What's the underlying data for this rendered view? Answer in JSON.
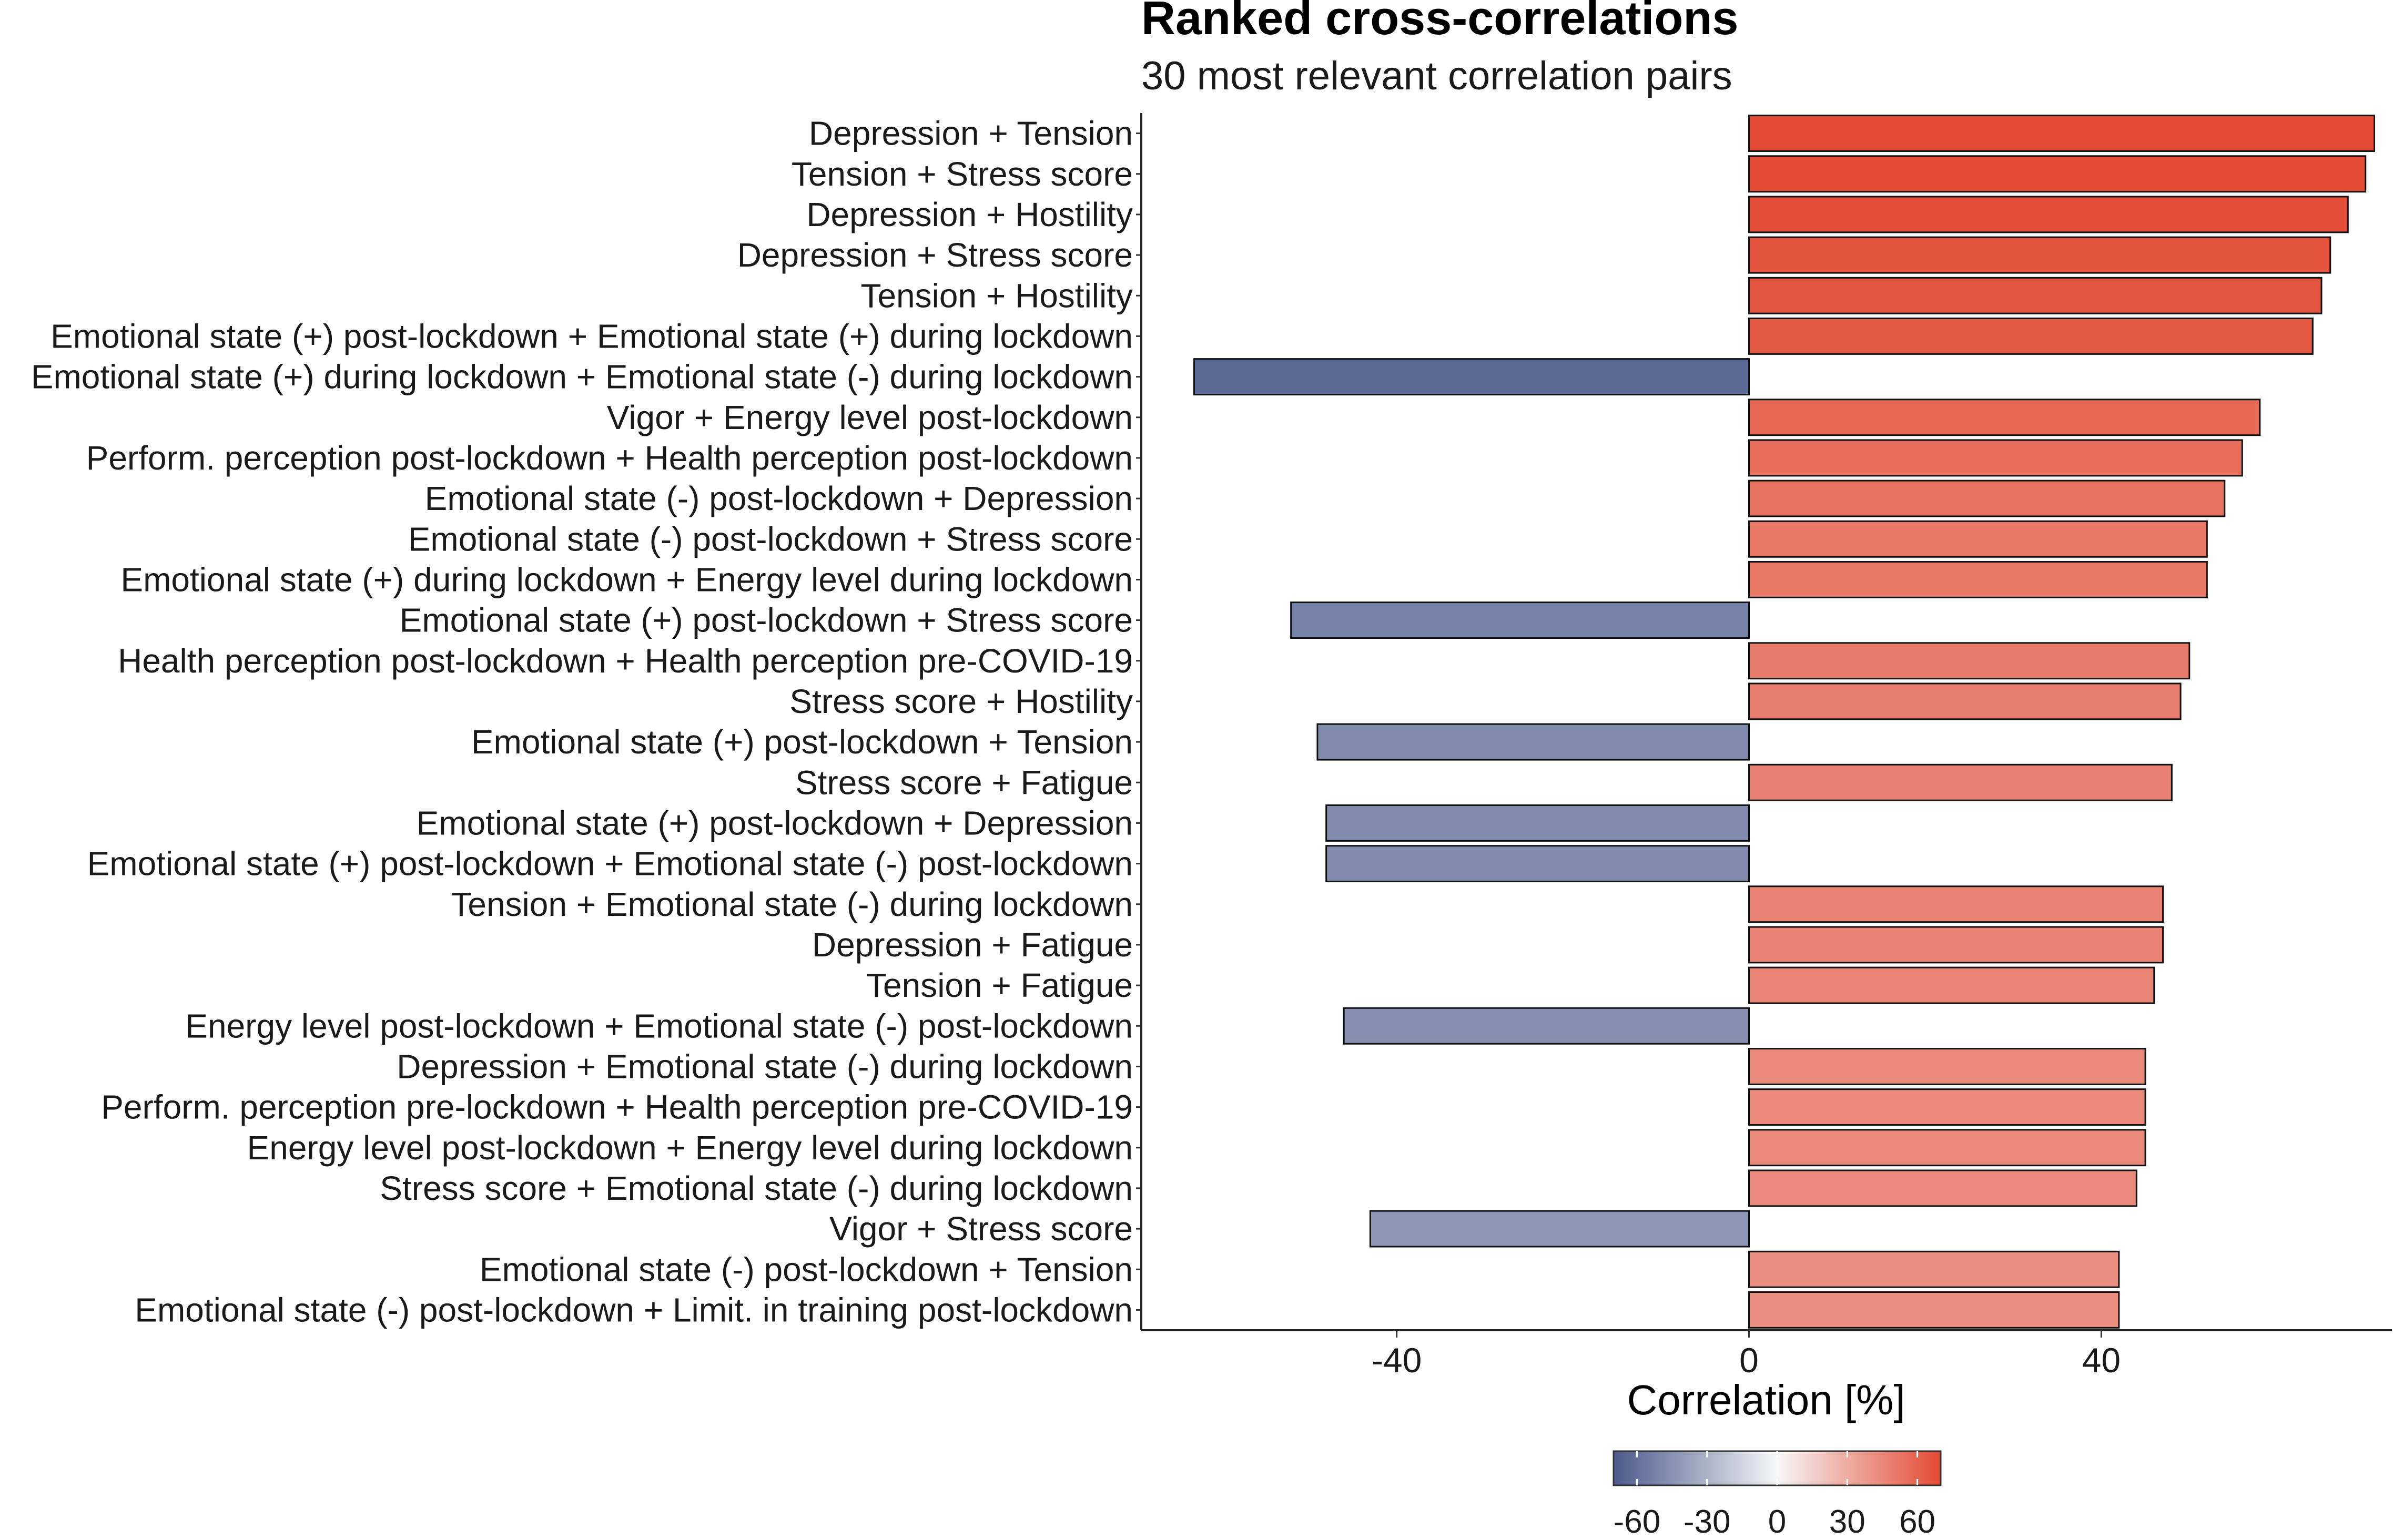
{
  "chart_data": {
    "type": "bar",
    "orientation": "horizontal",
    "title": "Ranked cross-correlations",
    "subtitle": "30 most relevant correlation pairs",
    "xlabel": "Correlation [%]",
    "ylabel": "",
    "xlim": [
      -69,
      73
    ],
    "xticks": [
      -40,
      0,
      40
    ],
    "grid": false,
    "legend": {
      "type": "colorbar",
      "placement": "bottom",
      "ticks": [
        -60,
        -30,
        0,
        30,
        60
      ],
      "range": [
        -70,
        70
      ],
      "colors": {
        "low": "#4a5a8c",
        "mid": "#f7f7f7",
        "high": "#e34a33"
      }
    },
    "categories": [
      "Depression + Tension",
      "Tension + Stress score",
      "Depression + Hostility",
      "Depression + Stress score",
      "Tension + Hostility",
      "Emotional state (+) post-lockdown + Emotional state (+) during lockdown",
      "Emotional state (+) during lockdown + Emotional state (-) during lockdown",
      "Vigor + Energy level post-lockdown",
      "Perform. perception post-lockdown + Health perception post-lockdown",
      "Emotional state (-) post-lockdown + Depression",
      "Emotional state (-) post-lockdown + Stress score",
      "Emotional state (+) during lockdown + Energy level during lockdown",
      "Emotional state (+) post-lockdown + Stress score",
      "Health perception post-lockdown + Health perception pre-COVID-19",
      "Stress score + Hostility",
      "Emotional state (+) post-lockdown + Tension",
      "Stress score + Fatigue",
      "Emotional state (+) post-lockdown + Depression",
      "Emotional state (+) post-lockdown + Emotional state (-) post-lockdown",
      "Tension + Emotional state (-) during lockdown",
      "Depression + Fatigue",
      "Tension + Fatigue",
      "Energy level post-lockdown + Emotional state (-) post-lockdown",
      "Depression + Emotional state (-) during lockdown",
      "Perform. perception pre-lockdown + Health perception pre-COVID-19",
      "Energy level post-lockdown + Energy level during lockdown",
      "Stress score + Emotional state (-) during lockdown",
      "Vigor + Stress score",
      "Emotional state (-) post-lockdown + Tension",
      "Emotional state (-) post-lockdown + Limit. in training post-lockdown"
    ],
    "values": [
      71,
      70,
      68,
      66,
      65,
      64,
      -63,
      58,
      56,
      54,
      52,
      52,
      -52,
      50,
      49,
      -49,
      48,
      -48,
      -48,
      47,
      47,
      46,
      -46,
      45,
      45,
      45,
      44,
      -43,
      42,
      42
    ]
  }
}
